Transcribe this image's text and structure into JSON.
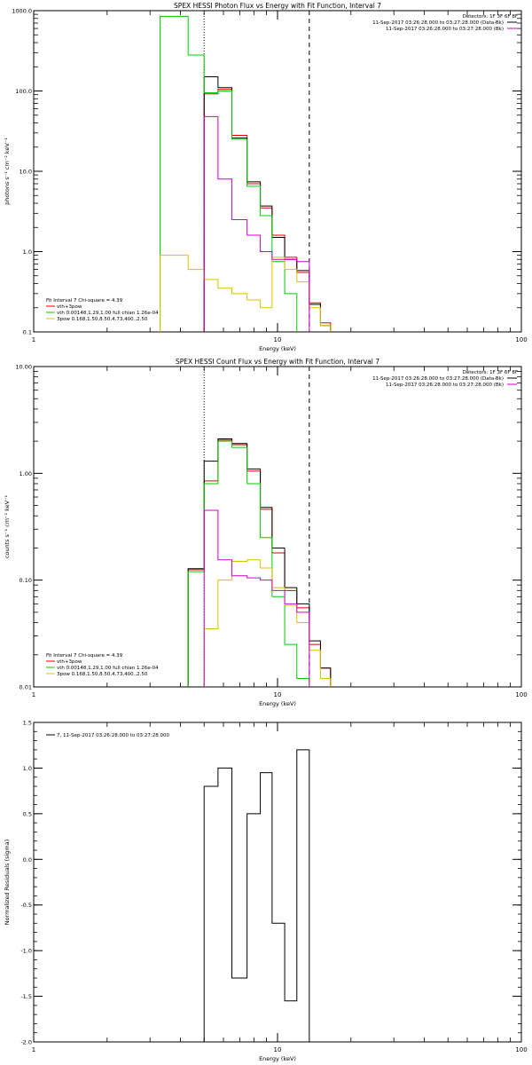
{
  "panels": [
    {
      "title": "SPEX HESSI Photon Flux vs Energy with Fit Function, Interval 7",
      "header_lines": [
        {
          "text": "Detectors: 1F 3F 6F 8F",
          "swatch": null
        },
        {
          "text": "11-Sep-2017 03:26:28.000 to 03:27:28.000 (Data-Bk)",
          "swatch": "#000000"
        },
        {
          "text": "11-Sep-2017 03:26:28.000 to 03:27:28.000 (Bk)",
          "swatch": "#d000d0"
        }
      ],
      "legend": [
        {
          "text": "Fit Interval  7   Chi-square = 4.39",
          "color": null
        },
        {
          "text": "vth+3pow",
          "color": "#e00000"
        },
        {
          "text": "vth 0.00148,1.29,1.00  full chian 1.26e-04",
          "color": "#00cc00"
        },
        {
          "text": "3pow 0.168,1.50,8.50,4.73,400.,2.50",
          "color": "#d8c000"
        }
      ],
      "xlabel": "Energy (keV)",
      "ylabel": "photons s⁻¹ cm⁻² keV⁻¹"
    },
    {
      "title": "SPEX HESSI Count Flux vs Energy with Fit Function, Interval 7",
      "header_lines": [
        {
          "text": "Detectors: 1F 3F 6F 8F",
          "swatch": null
        },
        {
          "text": "11-Sep-2017 03:26:28.000 to 03:27:28.000 (Data-Bk)",
          "swatch": "#000000"
        },
        {
          "text": "11-Sep-2017 03:26:28.000 to 03:27:28.000 (Bk)",
          "swatch": "#d000d0"
        }
      ],
      "legend": [
        {
          "text": "Fit Interval  7   Chi-square = 4.39",
          "color": null
        },
        {
          "text": "vth+3pow",
          "color": "#e00000"
        },
        {
          "text": "vth 0.00148,1.29,1.00  full chian 1.26e-04",
          "color": "#00cc00"
        },
        {
          "text": "3pow 0.168,1.50,8.50,4.73,400.,2.50",
          "color": "#d8c000"
        }
      ],
      "xlabel": "Energy (keV)",
      "ylabel": "counts s⁻¹ cm⁻² keV⁻¹"
    },
    {
      "title": "",
      "header_lines": [],
      "legend": [
        {
          "text": "7, 11-Sep-2017 03:26:28.000 to 03:27:28.000",
          "color": "#000000"
        }
      ],
      "xlabel": "Energy (keV)",
      "ylabel": "Normalized Residuals (sigma)"
    }
  ],
  "chart_data": [
    {
      "type": "line",
      "title": "SPEX HESSI Photon Flux vs Energy with Fit Function, Interval 7",
      "xlabel": "Energy (keV)",
      "ylabel": "photons s⁻¹ cm⁻² keV⁻¹",
      "xscale": "log",
      "yscale": "log",
      "xlim": [
        1,
        100
      ],
      "ylim": [
        0.1,
        1000
      ],
      "xticks": [
        1,
        10,
        100
      ],
      "xtick_labels": [
        "1",
        "10",
        "100"
      ],
      "yticks": [
        0.1,
        1,
        10,
        100,
        1000
      ],
      "ytick_labels": [
        "0.1",
        "1.0",
        "10.0",
        "100.0",
        "1000.0"
      ],
      "vlines": [
        {
          "x": 5,
          "style": "dotted"
        },
        {
          "x": 13.5,
          "style": "dashed"
        }
      ],
      "series": [
        {
          "name": "vth+3pow",
          "color": "#e00000",
          "bins": [
            [
              5,
              5.7
            ],
            [
              5.7,
              6.5
            ],
            [
              6.5,
              7.5
            ],
            [
              7.5,
              8.5
            ],
            [
              8.5,
              9.5
            ],
            [
              9.5,
              10.7
            ],
            [
              10.7,
              12
            ],
            [
              12,
              13.5
            ],
            [
              13.5,
              15
            ],
            [
              15,
              16.5
            ]
          ],
          "values": [
            92,
            105,
            28,
            7,
            3.5,
            1.6,
            0.85,
            0.55,
            0.23,
            0.13
          ]
        },
        {
          "name": "",
          "color": "#000000",
          "bins": [
            [
              5,
              5.7
            ],
            [
              5.7,
              6.5
            ],
            [
              6.5,
              7.5
            ],
            [
              7.5,
              8.5
            ],
            [
              8.5,
              9.5
            ],
            [
              9.5,
              10.7
            ],
            [
              10.7,
              12
            ],
            [
              12,
              13.5
            ],
            [
              13.5,
              15
            ],
            [
              15,
              16.5
            ]
          ],
          "values": [
            150,
            110,
            26,
            7.4,
            3.7,
            1.5,
            0.8,
            0.58,
            0.22,
            0.12
          ]
        },
        {
          "name": "vth 0.00148,1.29,1.00  full chian 1.26e-04",
          "color": "#00cc00",
          "bins": [
            [
              3.3,
              4.3
            ],
            [
              4.3,
              5
            ],
            [
              5,
              5.7
            ],
            [
              5.7,
              6.5
            ],
            [
              6.5,
              7.5
            ],
            [
              7.5,
              8.5
            ],
            [
              8.5,
              9.5
            ],
            [
              9.5,
              10.7
            ],
            [
              10.7,
              12
            ]
          ],
          "values": [
            850,
            280,
            95,
            100,
            25,
            6.5,
            2.8,
            0.75,
            0.3
          ]
        },
        {
          "name": "3pow 0.168,1.50,8.50,4.73,400.,2.50",
          "color": "#d8c000",
          "bins": [
            [
              3.3,
              4.3
            ],
            [
              4.3,
              5
            ],
            [
              5,
              5.7
            ],
            [
              5.7,
              6.5
            ],
            [
              6.5,
              7.5
            ],
            [
              7.5,
              8.5
            ],
            [
              8.5,
              9.5
            ],
            [
              9.5,
              10.7
            ],
            [
              10.7,
              12
            ],
            [
              12,
              13.5
            ],
            [
              13.5,
              15
            ],
            [
              15,
              16.5
            ]
          ],
          "values": [
            0.9,
            0.6,
            0.45,
            0.35,
            0.3,
            0.25,
            0.2,
            0.85,
            0.6,
            0.42,
            0.2,
            0.12
          ]
        },
        {
          "name": "",
          "color": "#d000d0",
          "bins": [
            [
              5,
              5.7
            ],
            [
              5.7,
              6.5
            ],
            [
              6.5,
              7.5
            ],
            [
              7.5,
              8.5
            ],
            [
              8.5,
              9.5
            ],
            [
              9.5,
              10.7
            ],
            [
              10.7,
              12
            ],
            [
              12,
              13.5
            ]
          ],
          "values": [
            48,
            8,
            2.5,
            1.6,
            1,
            0.8,
            0.8,
            0.75
          ]
        }
      ]
    },
    {
      "type": "line",
      "title": "SPEX HESSI Count Flux vs Energy with Fit Function, Interval 7",
      "xlabel": "Energy (keV)",
      "ylabel": "counts s⁻¹ cm⁻² keV⁻¹",
      "xscale": "log",
      "yscale": "log",
      "xlim": [
        1,
        100
      ],
      "ylim": [
        0.01,
        10
      ],
      "xticks": [
        1,
        10,
        100
      ],
      "xtick_labels": [
        "1",
        "10",
        "100"
      ],
      "yticks": [
        0.01,
        0.1,
        1,
        10
      ],
      "ytick_labels": [
        "0.01",
        "0.10",
        "1.00",
        "10.00"
      ],
      "vlines": [
        {
          "x": 5,
          "style": "dotted"
        },
        {
          "x": 13.5,
          "style": "dashed"
        }
      ],
      "series": [
        {
          "name": "vth+3pow",
          "color": "#e00000",
          "bins": [
            [
              4.3,
              5
            ],
            [
              5,
              5.7
            ],
            [
              5.7,
              6.5
            ],
            [
              6.5,
              7.5
            ],
            [
              7.5,
              8.5
            ],
            [
              8.5,
              9.5
            ],
            [
              9.5,
              10.7
            ],
            [
              10.7,
              12
            ],
            [
              12,
              13.5
            ],
            [
              13.5,
              15
            ],
            [
              15,
              16.5
            ]
          ],
          "values": [
            0.125,
            0.85,
            2.05,
            1.85,
            1.05,
            0.46,
            0.18,
            0.08,
            0.055,
            0.025,
            0.015
          ]
        },
        {
          "name": "",
          "color": "#000000",
          "bins": [
            [
              4.3,
              5
            ],
            [
              5,
              5.7
            ],
            [
              5.7,
              6.5
            ],
            [
              6.5,
              7.5
            ],
            [
              7.5,
              8.5
            ],
            [
              8.5,
              9.5
            ],
            [
              9.5,
              10.7
            ],
            [
              10.7,
              12
            ],
            [
              12,
              13.5
            ],
            [
              13.5,
              15
            ],
            [
              15,
              16.5
            ]
          ],
          "values": [
            0.128,
            1.3,
            2.1,
            1.9,
            1.1,
            0.48,
            0.2,
            0.085,
            0.06,
            0.027,
            0.015
          ]
        },
        {
          "name": "vth 0.00148,1.29,1.00  full chian 1.26e-04",
          "color": "#00cc00",
          "bins": [
            [
              4.3,
              5
            ],
            [
              5,
              5.7
            ],
            [
              5.7,
              6.5
            ],
            [
              6.5,
              7.5
            ],
            [
              7.5,
              8.5
            ],
            [
              8.5,
              9.5
            ],
            [
              9.5,
              10.7
            ],
            [
              10.7,
              12
            ],
            [
              12,
              13.5
            ]
          ],
          "values": [
            0.12,
            0.8,
            2,
            1.75,
            0.8,
            0.25,
            0.07,
            0.025,
            0.012
          ]
        },
        {
          "name": "3pow 0.168,1.50,8.50,4.73,400.,2.50",
          "color": "#d8c000",
          "bins": [
            [
              5,
              5.7
            ],
            [
              5.7,
              6.5
            ],
            [
              6.5,
              7.5
            ],
            [
              7.5,
              8.5
            ],
            [
              8.5,
              9.5
            ],
            [
              9.5,
              10.7
            ],
            [
              10.7,
              12
            ],
            [
              12,
              13.5
            ],
            [
              13.5,
              15
            ],
            [
              15,
              16.5
            ]
          ],
          "values": [
            0.035,
            0.1,
            0.15,
            0.155,
            0.13,
            0.085,
            0.058,
            0.04,
            0.022,
            0.012
          ]
        },
        {
          "name": "",
          "color": "#d000d0",
          "bins": [
            [
              5,
              5.7
            ],
            [
              5.7,
              6.5
            ],
            [
              6.5,
              7.5
            ],
            [
              7.5,
              8.5
            ],
            [
              8.5,
              9.5
            ],
            [
              9.5,
              10.7
            ],
            [
              10.7,
              12
            ],
            [
              12,
              13.5
            ]
          ],
          "values": [
            0.45,
            0.155,
            0.11,
            0.105,
            0.1,
            0.08,
            0.06,
            0.05
          ]
        }
      ]
    },
    {
      "type": "line",
      "title": "",
      "xlabel": "Energy (keV)",
      "ylabel": "Normalized Residuals (sigma)",
      "xscale": "log",
      "yscale": "linear",
      "xlim": [
        1,
        100
      ],
      "ylim": [
        -2,
        1.5
      ],
      "xticks": [
        1,
        10,
        100
      ],
      "xtick_labels": [
        "1",
        "10",
        "100"
      ],
      "yticks": [
        -2,
        -1.5,
        -1,
        -0.5,
        0,
        0.5,
        1,
        1.5
      ],
      "ytick_labels": [
        "-2.0",
        "-1.5",
        "-1.0",
        "-0.5",
        "0.0",
        "0.5",
        "1.0",
        "1.5"
      ],
      "vlines": [],
      "series": [
        {
          "name": "7, 11-Sep-2017 03:26:28.000 to 03:27:28.000",
          "color": "#000000",
          "bins": [
            [
              5,
              5.7
            ],
            [
              5.7,
              6.5
            ],
            [
              6.5,
              7.5
            ],
            [
              7.5,
              8.5
            ],
            [
              8.5,
              9.5
            ],
            [
              9.5,
              10.7
            ],
            [
              10.7,
              12
            ],
            [
              12,
              13.5
            ]
          ],
          "values": [
            0.8,
            1.0,
            -1.3,
            0.5,
            0.95,
            -0.7,
            -1.55,
            1.2
          ]
        }
      ]
    }
  ]
}
